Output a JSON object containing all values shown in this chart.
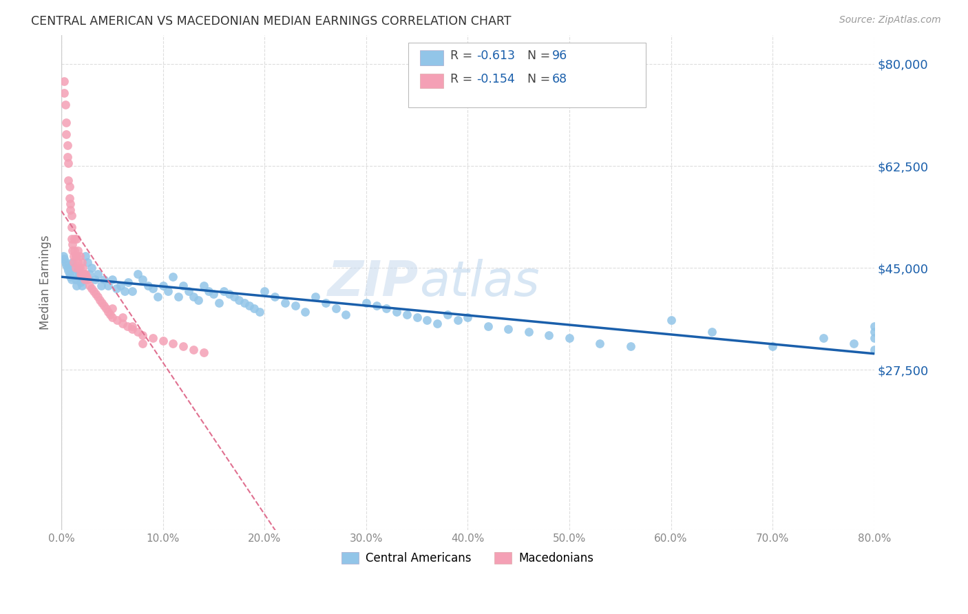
{
  "title": "CENTRAL AMERICAN VS MACEDONIAN MEDIAN EARNINGS CORRELATION CHART",
  "source": "Source: ZipAtlas.com",
  "ylabel": "Median Earnings",
  "yticks": [
    0,
    27500,
    45000,
    62500,
    80000
  ],
  "ytick_labels": [
    "",
    "$27,500",
    "$45,000",
    "$62,500",
    "$80,000"
  ],
  "watermark_zip": "ZIP",
  "watermark_atlas": "atlas",
  "legend_r1": "R = ",
  "legend_v1": "-0.613",
  "legend_n1": "N = ",
  "legend_nv1": "96",
  "legend_r2": "R = ",
  "legend_v2": "-0.154",
  "legend_n2": "N = ",
  "legend_nv2": "68",
  "blue_color": "#92C5E8",
  "pink_color": "#F4A0B5",
  "blue_line_color": "#1A5FAB",
  "pink_line_color": "#E07090",
  "title_color": "#333333",
  "tick_label_color": "#1A5FAB",
  "source_color": "#999999",
  "background_color": "#FFFFFF",
  "grid_color": "#DDDDDD",
  "xmin": 0.0,
  "xmax": 0.8,
  "ymin": 0,
  "ymax": 85000,
  "blue_scatter_x": [
    0.002,
    0.003,
    0.004,
    0.005,
    0.006,
    0.007,
    0.008,
    0.009,
    0.01,
    0.011,
    0.012,
    0.013,
    0.014,
    0.015,
    0.016,
    0.017,
    0.018,
    0.019,
    0.02,
    0.022,
    0.024,
    0.026,
    0.028,
    0.03,
    0.033,
    0.036,
    0.039,
    0.042,
    0.046,
    0.05,
    0.054,
    0.058,
    0.062,
    0.066,
    0.07,
    0.075,
    0.08,
    0.085,
    0.09,
    0.095,
    0.1,
    0.105,
    0.11,
    0.115,
    0.12,
    0.125,
    0.13,
    0.135,
    0.14,
    0.145,
    0.15,
    0.155,
    0.16,
    0.165,
    0.17,
    0.175,
    0.18,
    0.185,
    0.19,
    0.195,
    0.2,
    0.21,
    0.22,
    0.23,
    0.24,
    0.25,
    0.26,
    0.27,
    0.28,
    0.3,
    0.31,
    0.32,
    0.33,
    0.34,
    0.35,
    0.36,
    0.37,
    0.38,
    0.39,
    0.4,
    0.42,
    0.44,
    0.46,
    0.48,
    0.5,
    0.53,
    0.56,
    0.6,
    0.64,
    0.7,
    0.75,
    0.78,
    0.8,
    0.8,
    0.8,
    0.8
  ],
  "blue_scatter_y": [
    47000,
    46500,
    46000,
    45500,
    45000,
    44500,
    44000,
    43500,
    43000,
    46000,
    45000,
    44000,
    43000,
    42000,
    44500,
    43500,
    43000,
    42500,
    42000,
    43000,
    47000,
    46000,
    44000,
    45000,
    43000,
    44000,
    42000,
    43000,
    42000,
    43000,
    41500,
    42000,
    41000,
    42500,
    41000,
    44000,
    43000,
    42000,
    41500,
    40000,
    42000,
    41000,
    43500,
    40000,
    42000,
    41000,
    40000,
    39500,
    42000,
    41000,
    40500,
    39000,
    41000,
    40500,
    40000,
    39500,
    39000,
    38500,
    38000,
    37500,
    41000,
    40000,
    39000,
    38500,
    37500,
    40000,
    39000,
    38000,
    37000,
    39000,
    38500,
    38000,
    37500,
    37000,
    36500,
    36000,
    35500,
    37000,
    36000,
    36500,
    35000,
    34500,
    34000,
    33500,
    33000,
    32000,
    31500,
    36000,
    34000,
    31500,
    33000,
    32000,
    35000,
    34000,
    33000,
    31000
  ],
  "pink_scatter_x": [
    0.003,
    0.003,
    0.004,
    0.005,
    0.005,
    0.006,
    0.006,
    0.007,
    0.007,
    0.008,
    0.008,
    0.009,
    0.009,
    0.01,
    0.01,
    0.01,
    0.011,
    0.011,
    0.012,
    0.012,
    0.013,
    0.013,
    0.014,
    0.014,
    0.015,
    0.015,
    0.016,
    0.016,
    0.017,
    0.018,
    0.018,
    0.019,
    0.02,
    0.02,
    0.021,
    0.022,
    0.023,
    0.024,
    0.025,
    0.026,
    0.028,
    0.03,
    0.032,
    0.034,
    0.036,
    0.038,
    0.04,
    0.042,
    0.044,
    0.046,
    0.048,
    0.05,
    0.055,
    0.06,
    0.065,
    0.07,
    0.075,
    0.08,
    0.09,
    0.1,
    0.11,
    0.12,
    0.13,
    0.14,
    0.05,
    0.06,
    0.07,
    0.08
  ],
  "pink_scatter_y": [
    77000,
    75000,
    73000,
    70000,
    68000,
    66000,
    64000,
    63000,
    60000,
    59000,
    57000,
    56000,
    55000,
    54000,
    52000,
    50000,
    49000,
    48000,
    47000,
    46000,
    50000,
    48000,
    47000,
    45000,
    50000,
    47000,
    48000,
    46000,
    45000,
    47000,
    45000,
    44000,
    46000,
    44000,
    45000,
    44000,
    43000,
    44000,
    43500,
    43000,
    42000,
    41500,
    41000,
    40500,
    40000,
    39500,
    39000,
    38500,
    38000,
    37500,
    37000,
    36500,
    36000,
    35500,
    35000,
    34500,
    34000,
    33500,
    33000,
    32500,
    32000,
    31500,
    31000,
    30500,
    38000,
    36500,
    35000,
    32000
  ],
  "xtick_vals": [
    0.0,
    0.1,
    0.2,
    0.3,
    0.4,
    0.5,
    0.6,
    0.7,
    0.8
  ],
  "xtick_labels": [
    "0.0%",
    "10.0%",
    "20.0%",
    "30.0%",
    "40.0%",
    "50.0%",
    "60.0%",
    "70.0%",
    "80.0%"
  ]
}
